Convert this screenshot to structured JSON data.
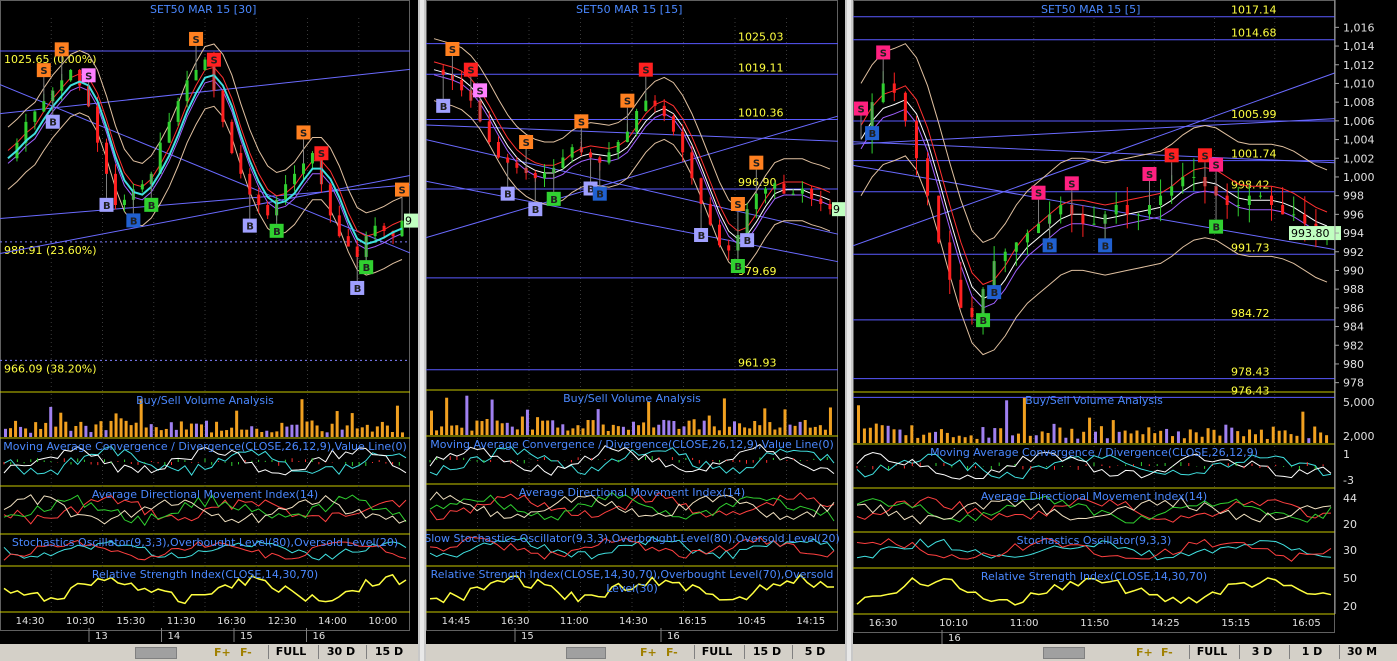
{
  "panes": [
    {
      "title": "SET50 MAR 15   [30]",
      "price_labels": [
        {
          "text": "1025.65 (0.00%)"
        },
        {
          "text": "988.91 (23.60%)"
        },
        {
          "text": "966.09 (38.20%)"
        }
      ],
      "level_labels": [],
      "last_price": "9",
      "sub_titles": [
        "Buy/Sell Volume Analysis",
        "Moving Average Convergence / Divergence(CLOSE,26,12,9),Value Line(0)",
        "Average Directional Movement Index(14)",
        "Stochastics Oscillator(9,3,3),Overbought Level(80),Oversold Level(20)",
        "Relative Strength Index(CLOSE,14,30,70)"
      ],
      "time_labels": [
        "14:30",
        "10:30",
        "15:30",
        "11:30",
        "16:30",
        "12:30",
        "14:00",
        "10:00"
      ],
      "date_labels": [
        "13",
        "14",
        "15",
        "16"
      ],
      "toolbar": [
        "FULL",
        "30 D",
        "15 D"
      ]
    },
    {
      "title": "SET50 MAR 15   [15]",
      "price_labels": [],
      "level_labels": [
        {
          "text": "1025.03"
        },
        {
          "text": "1019.11"
        },
        {
          "text": "1010.36"
        },
        {
          "text": "996.90"
        },
        {
          "text": "979.69"
        },
        {
          "text": "961.93"
        }
      ],
      "last_price": "9",
      "sub_titles": [
        "Buy/Sell Volume Analysis",
        "Moving Average Convergence / Divergence(CLOSE,26,12,9),Value Line(0)",
        "Average Directional Movement Index(14)",
        "Slow Stochastics Oscillator(9,3,3),Overbought Level(80),Oversold Level(20)",
        "Relative Strength Index(CLOSE,14,30,70),Overbought Level(70),Oversold",
        "Level(30)"
      ],
      "time_labels": [
        "14:45",
        "16:30",
        "11:00",
        "14:30",
        "16:15",
        "10:45",
        "14:15"
      ],
      "date_labels": [
        "15",
        "16"
      ],
      "toolbar": [
        "FULL",
        "15 D",
        "5 D"
      ]
    },
    {
      "title": "SET50 MAR 15   [5]",
      "price_labels": [],
      "level_labels": [
        {
          "text": "1017.14"
        },
        {
          "text": "1014.68"
        },
        {
          "text": "1005.99"
        },
        {
          "text": "1001.74"
        },
        {
          "text": "998.42"
        },
        {
          "text": "991.73"
        },
        {
          "text": "984.72"
        },
        {
          "text": "978.43"
        },
        {
          "text": "976.43"
        }
      ],
      "last_price": "993.80",
      "y_axis": [
        "1,016",
        "1,014",
        "1,012",
        "1,010",
        "1,008",
        "1,006",
        "1,004",
        "1,002",
        "1,000",
        "998",
        "996",
        "994",
        "992",
        "990",
        "988",
        "986",
        "984",
        "982",
        "980",
        "978"
      ],
      "sub_axes": [
        [
          "5,000",
          "2,000"
        ],
        [
          "1",
          "-3"
        ],
        [
          "44",
          "20"
        ],
        [
          "30"
        ],
        [
          "50",
          "20"
        ]
      ],
      "sub_titles": [
        "Buy/Sell Volume Analysis",
        "Moving Average Convergence / Divergence(CLOSE,26,12,9)",
        "Average Directional Movement Index(14)",
        "Stochastics Oscillator(9,3,3)",
        "Relative Strength Index(CLOSE,14,30,70)"
      ],
      "time_labels": [
        "16:30",
        "10:10",
        "11:00",
        "11:50",
        "14:25",
        "15:15",
        "16:05"
      ],
      "date_labels": [
        "16"
      ],
      "toolbar": [
        "FULL",
        "3 D",
        "1 D",
        "30 M"
      ]
    }
  ],
  "toolbar_f_labels": [
    "F+",
    "F-"
  ],
  "colors": {
    "bg": "#000000",
    "title": "#4a88ff",
    "level": "#ffff40",
    "grid": "#3a3a3a",
    "up": "#30d030",
    "down": "#ff2020",
    "sell": "#ff8020",
    "buy": "#5050c0"
  },
  "chart_data": [
    {
      "type": "line",
      "title": "SET50 MAR 15 [30]",
      "series": [
        {
          "name": "close",
          "values": [
            1005,
            1008,
            1012,
            1014,
            1016,
            1018,
            1020,
            1022,
            1019,
            1015,
            1008,
            1002,
            996,
            997,
            999,
            1000,
            1002,
            1008,
            1012,
            1016,
            1020,
            1022,
            1024,
            1018,
            1012,
            1006,
            1002,
            998,
            996,
            994,
            997,
            1000,
            1002,
            1004,
            1006,
            1000,
            994,
            990,
            988,
            986,
            990,
            992,
            991,
            990,
            993
          ]
        }
      ],
      "ylim": [
        960,
        1032
      ]
    },
    {
      "type": "line",
      "title": "SET50 MAR 15 [15]",
      "series": [
        {
          "name": "close",
          "values": [
            1020,
            1019,
            1018,
            1016,
            1014,
            1010,
            1006,
            1003,
            1002,
            1001,
            1000,
            999,
            1000,
            1001,
            1003,
            1005,
            1004,
            1003,
            1002,
            1004,
            1006,
            1008,
            1012,
            1014,
            1013,
            1011,
            1008,
            1004,
            999,
            994,
            990,
            986,
            985,
            988,
            993,
            996,
            997,
            998,
            996,
            996,
            997,
            995,
            994,
            993
          ]
        }
      ],
      "ylim": [
        958,
        1030
      ]
    },
    {
      "type": "line",
      "title": "SET50 MAR 15 [5]",
      "series": [
        {
          "name": "close",
          "values": [
            1004,
            1008,
            1010,
            1009,
            1006,
            1002,
            998,
            993,
            989,
            986,
            985,
            988,
            991,
            992,
            993,
            994,
            995,
            996,
            997,
            996,
            995,
            995,
            996,
            997,
            996,
            996,
            997,
            998,
            999,
            1000,
            1000,
            999,
            998,
            997,
            997,
            998,
            998,
            997,
            996,
            996,
            995,
            994,
            994
          ]
        }
      ],
      "ylim": [
        977,
        1017
      ]
    }
  ]
}
